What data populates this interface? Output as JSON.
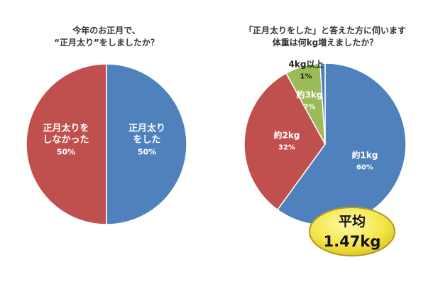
{
  "colors": {
    "blue": "#4f81bd",
    "red": "#c0504d",
    "green": "#9bbb59",
    "text": "#333333",
    "badge_fill": "#f5e64a",
    "badge_stroke": "#b29a1a"
  },
  "chart_data": [
    {
      "type": "pie",
      "title_lines": [
        "今年のお正月で、",
        "“正月太り”をしましたか？"
      ],
      "slices": [
        {
          "label_lines": [
            "正月太り",
            "をした"
          ],
          "value": 50,
          "value_label": "50%",
          "color": "#4f81bd"
        },
        {
          "label_lines": [
            "正月太りを",
            "しなかった"
          ],
          "value": 50,
          "value_label": "50%",
          "color": "#c0504d"
        }
      ]
    },
    {
      "type": "pie",
      "title_lines": [
        "「正月太りをした」と答えた方に伺います",
        "体重は何kg増えましたか？"
      ],
      "slices": [
        {
          "label_lines": [
            "約1kg"
          ],
          "value": 60,
          "value_label": "60%",
          "color": "#4f81bd"
        },
        {
          "label_lines": [
            "約2kg"
          ],
          "value": 32,
          "value_label": "32%",
          "color": "#c0504d"
        },
        {
          "label_lines": [
            "約3kg"
          ],
          "value": 7,
          "value_label": "7%",
          "color": "#9bbb59"
        },
        {
          "label_lines": [
            "4kg以上"
          ],
          "value": 1,
          "value_label": "1%",
          "color": "#4f81bd"
        }
      ],
      "callout": {
        "lines": [
          "平均",
          "1.47kg"
        ]
      }
    }
  ]
}
